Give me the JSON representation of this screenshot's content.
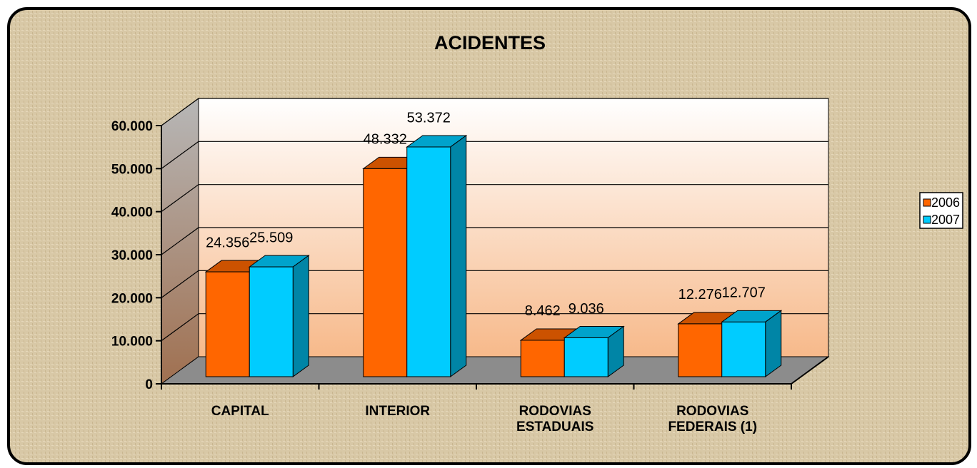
{
  "chart_data": {
    "type": "bar3d",
    "title": "ACIDENTES",
    "categories": [
      "CAPITAL",
      "INTERIOR",
      "RODOVIAS\nESTADUAIS",
      "RODOVIAS\nFEDERAIS (1)"
    ],
    "series": [
      {
        "name": "2006",
        "color": "#ff6600",
        "values": [
          24356,
          48332,
          8462,
          12276
        ],
        "value_labels": [
          "24.356",
          "48.332",
          "8.462",
          "12.276"
        ]
      },
      {
        "name": "2007",
        "color": "#00ccff",
        "values": [
          25509,
          53372,
          9036,
          12707
        ],
        "value_labels": [
          "25.509",
          "53.372",
          "9.036",
          "12.707"
        ]
      }
    ],
    "ylim": [
      0,
      60000
    ],
    "yticks": [
      0,
      {
        "value": 10000,
        "label": "10.000"
      },
      {
        "value": 20000,
        "label": "20.000"
      },
      {
        "value": 30000,
        "label": "30.000"
      },
      {
        "value": 40000,
        "label": "40.000"
      },
      {
        "value": 50000,
        "label": "50.000"
      },
      {
        "value": 60000,
        "label": "60.000"
      }
    ],
    "grid": true,
    "legend": "right"
  }
}
